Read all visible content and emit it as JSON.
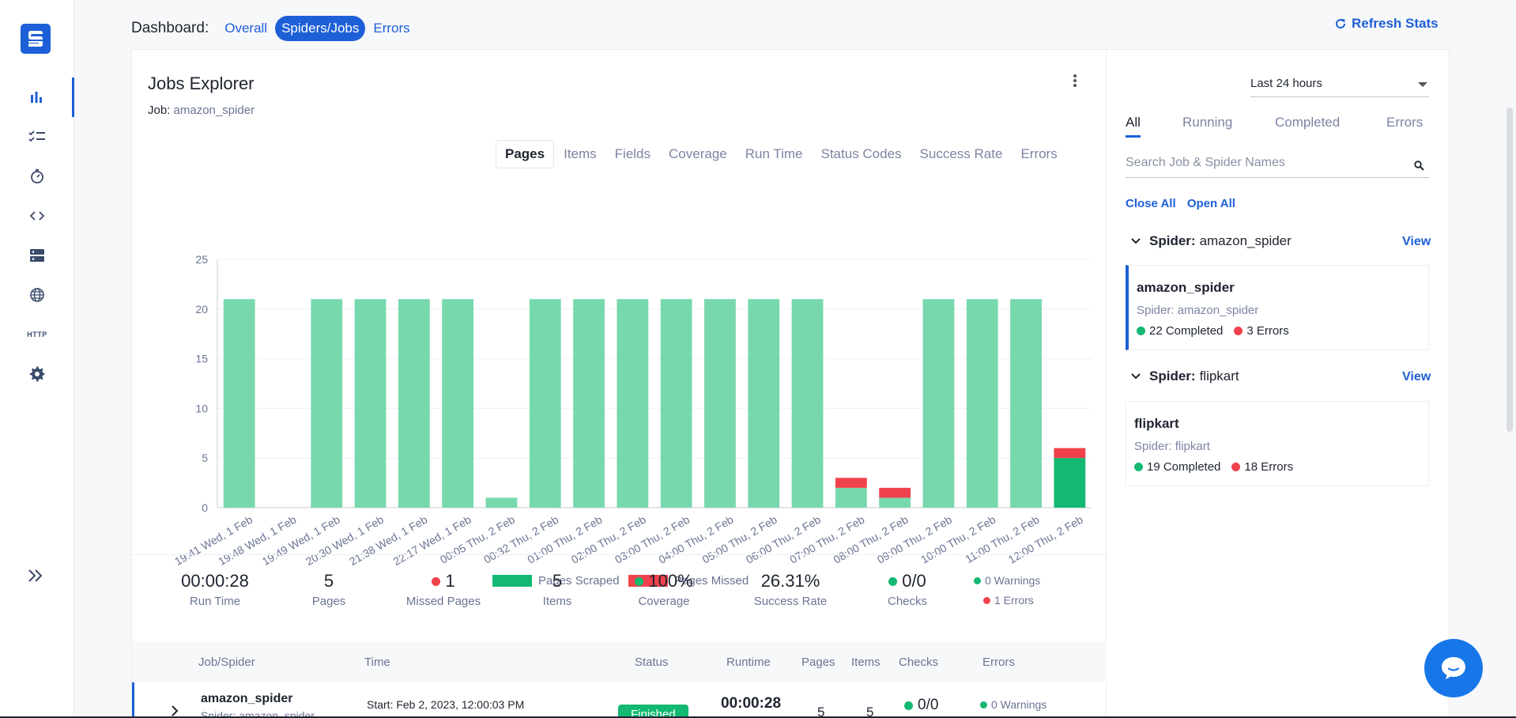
{
  "topbar": {
    "label": "Dashboard:",
    "tabs": [
      "Overall",
      "Spiders/Jobs",
      "Errors"
    ],
    "active_tab": "Spiders/Jobs",
    "refresh": "Refresh Stats"
  },
  "sidebar": {
    "items": [
      "bar-chart-icon",
      "checklist-icon",
      "timer-icon",
      "code-icon",
      "server-icon",
      "globe-icon",
      "http-icon",
      "gear-icon"
    ],
    "http_label": "HTTP"
  },
  "main": {
    "title": "Jobs Explorer",
    "job_key": "Job:",
    "job_value": "amazon_spider",
    "chart_tabs": [
      "Pages",
      "Items",
      "Fields",
      "Coverage",
      "Run Time",
      "Status Codes",
      "Success Rate",
      "Errors"
    ],
    "active_chart_tab": "Pages"
  },
  "chart_data": {
    "type": "bar",
    "stacked": true,
    "categories": [
      "19:41 Wed, 1 Feb",
      "19:48 Wed, 1 Feb",
      "19:49 Wed, 1 Feb",
      "20:30 Wed, 1 Feb",
      "21:38 Wed, 1 Feb",
      "22:17 Wed, 1 Feb",
      "00:05 Thu, 2 Feb",
      "00:32 Thu, 2 Feb",
      "01:00 Thu, 2 Feb",
      "02:00 Thu, 2 Feb",
      "03:00 Thu, 2 Feb",
      "04:00 Thu, 2 Feb",
      "05:00 Thu, 2 Feb",
      "06:00 Thu, 2 Feb",
      "07:00 Thu, 2 Feb",
      "08:00 Thu, 2 Feb",
      "09:00 Thu, 2 Feb",
      "10:00 Thu, 2 Feb",
      "11:00 Thu, 2 Feb",
      "12:00 Thu, 2 Feb"
    ],
    "series": [
      {
        "name": "Pages Scraped",
        "color": "#13b871",
        "values": [
          21,
          0,
          21,
          21,
          21,
          21,
          1,
          21,
          21,
          21,
          21,
          21,
          21,
          21,
          2,
          1,
          21,
          21,
          21,
          5
        ]
      },
      {
        "name": "Pages Missed",
        "color": "#f0424c",
        "values": [
          0,
          0,
          0,
          0,
          0,
          0,
          0,
          0,
          0,
          0,
          0,
          0,
          0,
          0,
          1,
          1,
          0,
          0,
          0,
          1
        ]
      }
    ],
    "highlight_index": 19,
    "ylim": [
      0,
      25
    ],
    "yticks": [
      0,
      5,
      10,
      15,
      20,
      25
    ],
    "grid": true,
    "legend": "bottom-center"
  },
  "stats": [
    {
      "value": "00:00:28",
      "label": "Run Time",
      "dot": ""
    },
    {
      "value": "5",
      "label": "Pages",
      "dot": ""
    },
    {
      "value": "1",
      "label": "Missed Pages",
      "dot": "red"
    },
    {
      "value": "5",
      "label": "Items",
      "dot": ""
    },
    {
      "value": "100%",
      "label": "Coverage",
      "dot": "green"
    },
    {
      "value": "26.31%",
      "label": "Success Rate",
      "dot": ""
    },
    {
      "value": "0/0",
      "label": "Checks",
      "dot": "green"
    }
  ],
  "warnings": {
    "warnings": "0 Warnings",
    "errors": "1 Errors"
  },
  "table": {
    "headers": [
      "Job/Spider",
      "Time",
      "Status",
      "Runtime",
      "Pages",
      "Items",
      "Checks",
      "Errors"
    ],
    "row": {
      "name": "amazon_spider",
      "sub": "Spider: amazon_spider",
      "time": "Start: Feb 2, 2023, 12:00:03 PM",
      "status": "Finished",
      "runtime": "00:00:28",
      "pages": "5",
      "items": "5",
      "checks": "0/0",
      "warnings": "0 Warnings"
    }
  },
  "right": {
    "range": "Last 24 hours",
    "tabs": [
      "All",
      "Running",
      "Completed",
      "Errors"
    ],
    "active_tab": "All",
    "search_placeholder": "Search Job & Spider Names",
    "close_all": "Close All",
    "open_all": "Open All",
    "spider_key": "Spider:",
    "view": "View",
    "groups": [
      {
        "spider": "amazon_spider",
        "job": "amazon_spider",
        "sub": "Spider: amazon_spider",
        "completed": "22 Completed",
        "errors": "3 Errors"
      },
      {
        "spider": "flipkart",
        "job": "flipkart",
        "sub": "Spider: flipkart",
        "completed": "19 Completed",
        "errors": "18 Errors"
      }
    ]
  }
}
